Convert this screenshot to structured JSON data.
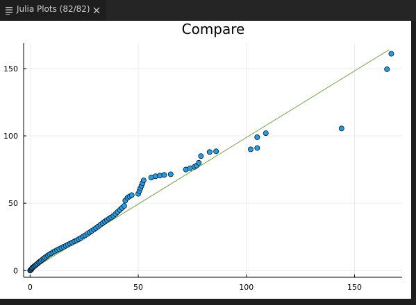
{
  "tab": {
    "label": "Julia Plots (82/82)",
    "icon": "plot-list-icon",
    "close_icon": "close-icon"
  },
  "chart_data": {
    "type": "scatter",
    "title": "Compare",
    "xlabel": "",
    "ylabel": "",
    "xlim": [
      -3,
      172
    ],
    "ylim": [
      -5,
      169
    ],
    "xticks": [
      0,
      50,
      100,
      150
    ],
    "yticks": [
      0,
      50,
      100,
      150
    ],
    "grid": true,
    "legend": "none",
    "marker_color": "#1f9ee8",
    "line_color": "#6aaa3a",
    "reference_line": {
      "x": [
        0,
        166
      ],
      "y": [
        0,
        164
      ]
    },
    "points": [
      [
        0,
        0
      ],
      [
        0.3,
        0.5
      ],
      [
        0.6,
        0.9
      ],
      [
        0.8,
        1.5
      ],
      [
        1,
        2
      ],
      [
        1.4,
        2.5
      ],
      [
        1.8,
        3
      ],
      [
        2.2,
        3.5
      ],
      [
        2.6,
        4
      ],
      [
        3,
        4.6
      ],
      [
        3.5,
        5.2
      ],
      [
        4,
        6
      ],
      [
        4.5,
        6.6
      ],
      [
        5,
        7.2
      ],
      [
        5.6,
        8
      ],
      [
        6.2,
        8.8
      ],
      [
        6.8,
        9.5
      ],
      [
        7.5,
        10.3
      ],
      [
        8.2,
        11.2
      ],
      [
        9,
        12
      ],
      [
        9.8,
        12.8
      ],
      [
        10.6,
        13.6
      ],
      [
        11.5,
        14.4
      ],
      [
        12.5,
        15.2
      ],
      [
        13.5,
        16
      ],
      [
        14.5,
        16.8
      ],
      [
        15.5,
        17.6
      ],
      [
        16.5,
        18.4
      ],
      [
        17.5,
        19.2
      ],
      [
        18.5,
        20
      ],
      [
        19.5,
        20.8
      ],
      [
        20.5,
        21.6
      ],
      [
        21.5,
        22.4
      ],
      [
        22.5,
        23.3
      ],
      [
        23.5,
        24.2
      ],
      [
        24.5,
        25.2
      ],
      [
        25.5,
        26.2
      ],
      [
        26.5,
        27.2
      ],
      [
        27.5,
        28.3
      ],
      [
        28.5,
        29.4
      ],
      [
        29.5,
        30.5
      ],
      [
        30.5,
        31.6
      ],
      [
        31.5,
        32.8
      ],
      [
        32.5,
        34
      ],
      [
        33.5,
        35.2
      ],
      [
        34.5,
        36.4
      ],
      [
        35.5,
        37.5
      ],
      [
        36.5,
        38.5
      ],
      [
        37.5,
        39.5
      ],
      [
        38.5,
        40.6
      ],
      [
        39.5,
        42
      ],
      [
        40.5,
        43.5
      ],
      [
        41.5,
        45
      ],
      [
        42.5,
        46.5
      ],
      [
        43.5,
        48
      ],
      [
        44,
        52
      ],
      [
        45,
        54
      ],
      [
        46,
        55
      ],
      [
        47,
        56
      ],
      [
        50,
        57
      ],
      [
        50.5,
        59
      ],
      [
        51,
        61
      ],
      [
        51.5,
        63
      ],
      [
        52,
        65
      ],
      [
        52.5,
        67
      ],
      [
        56,
        69
      ],
      [
        58,
        70
      ],
      [
        60,
        70.5
      ],
      [
        62,
        71
      ],
      [
        65,
        71.5
      ],
      [
        72,
        75
      ],
      [
        74,
        76
      ],
      [
        76,
        77
      ],
      [
        77,
        78
      ],
      [
        78,
        80
      ],
      [
        79,
        85
      ],
      [
        83,
        88
      ],
      [
        86,
        88.5
      ],
      [
        102,
        90
      ],
      [
        105,
        91
      ],
      [
        105,
        99
      ],
      [
        109,
        102
      ],
      [
        144,
        105.5
      ],
      [
        165,
        149.5
      ],
      [
        167,
        161
      ]
    ]
  }
}
